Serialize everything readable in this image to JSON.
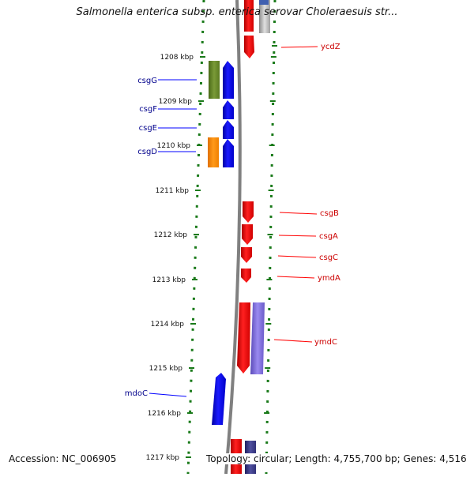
{
  "title": "Salmonella enterica subsp. enterica serovar Choleraesuis str...",
  "footer": {
    "accession": "Accession: NC_006905",
    "summary": "Topology: circular; Length: 4,755,700 bp; Genes: 4,516"
  },
  "colors": {
    "scale_green": "#1a7a1a",
    "backbone": "#808080",
    "forward_gene": "#ff0000",
    "reverse_gene": "#0000ff",
    "rna_purple": "#7f6fd8",
    "olive_gene": "#6b8a2a",
    "orange_gene": "#ff8c00",
    "label_blue": "#00008b",
    "label_red": "#cc0000"
  },
  "scale_ticks": [
    "1208 kbp",
    "1209 kbp",
    "1210 kbp",
    "1211 kbp",
    "1212 kbp",
    "1213 kbp",
    "1214 kbp",
    "1215 kbp",
    "1216 kbp",
    "1217 kbp"
  ],
  "left_genes": [
    "csgG",
    "csgF",
    "csgE",
    "csgD",
    "mdoC"
  ],
  "right_genes": [
    "ycdZ",
    "csgB",
    "csgA",
    "csgC",
    "ymdA",
    "ymdC"
  ]
}
